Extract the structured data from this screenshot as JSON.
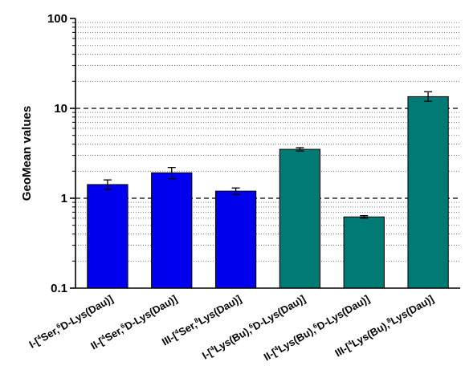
{
  "chart_data": {
    "type": "bar",
    "ylabel": "GeoMean values",
    "yscale": "log",
    "ylim": [
      0.1,
      100
    ],
    "ytick_labels": [
      "0.1",
      "1",
      "10",
      "100"
    ],
    "categories": [
      {
        "parts": [
          [
            "I-[",
            false
          ],
          [
            "4",
            true
          ],
          [
            "Ser,",
            false
          ],
          [
            "6",
            true
          ],
          [
            "D-Lys(Dau)]",
            false
          ]
        ]
      },
      {
        "parts": [
          [
            "II-[",
            false
          ],
          [
            "4",
            true
          ],
          [
            "Ser,",
            false
          ],
          [
            "6",
            true
          ],
          [
            "D-Lys(Dau)]",
            false
          ]
        ]
      },
      {
        "parts": [
          [
            "III-[",
            false
          ],
          [
            "4",
            true
          ],
          [
            "Ser,",
            false
          ],
          [
            "8",
            true
          ],
          [
            "Lys(Dau)]",
            false
          ]
        ]
      },
      {
        "parts": [
          [
            "I-[",
            false
          ],
          [
            "4",
            true
          ],
          [
            "Lys(Bu),",
            false
          ],
          [
            "6",
            true
          ],
          [
            "D-Lys(Dau)]",
            false
          ]
        ]
      },
      {
        "parts": [
          [
            "II-[",
            false
          ],
          [
            "4",
            true
          ],
          [
            "Lys(Bu),",
            false
          ],
          [
            "6",
            true
          ],
          [
            "D-Lys(Dau)]",
            false
          ]
        ]
      },
      {
        "parts": [
          [
            "III-[",
            false
          ],
          [
            "4",
            true
          ],
          [
            "Lys(Bu),",
            false
          ],
          [
            "8",
            true
          ],
          [
            "Lys(Dau)]",
            false
          ]
        ]
      }
    ],
    "values": [
      1.42,
      1.92,
      1.2,
      3.5,
      0.62,
      13.5
    ],
    "error_high": [
      1.6,
      2.2,
      1.3,
      3.65,
      0.64,
      15.3
    ],
    "error_low": [
      1.25,
      1.65,
      1.1,
      3.35,
      0.6,
      12.0
    ],
    "bar_colors": [
      "#0000ee",
      "#0000ee",
      "#0000ee",
      "#007a74",
      "#007a74",
      "#007a74"
    ],
    "reference_lines": [
      1,
      10
    ],
    "grid": "horizontal-dotted-minor",
    "legend": "none"
  }
}
